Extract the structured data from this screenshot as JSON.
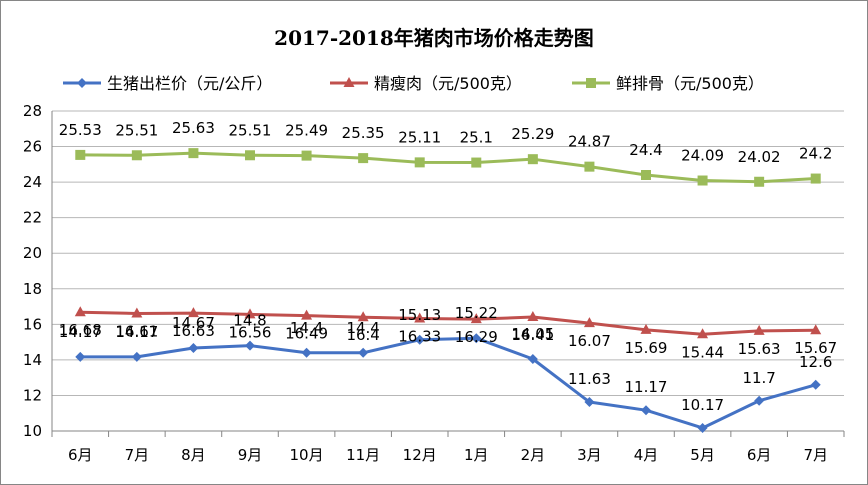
{
  "chart_data": {
    "type": "line",
    "title": "2017-2018年猪肉市场价格走势图",
    "xlabel": "",
    "ylabel": "",
    "categories": [
      "6月",
      "7月",
      "8月",
      "9月",
      "10月",
      "11月",
      "12月",
      "1月",
      "2月",
      "3月",
      "4月",
      "5月",
      "6月",
      "7月"
    ],
    "ylim": [
      10,
      28
    ],
    "yticks": [
      "10",
      "12",
      "14",
      "16",
      "18",
      "20",
      "22",
      "24",
      "26",
      "28"
    ],
    "grid": true,
    "legend_position": "top",
    "series": [
      {
        "name": "生猪出栏价（元/公斤）",
        "color": "#4472C4",
        "marker": "diamond",
        "values": [
          14.17,
          14.17,
          14.67,
          14.8,
          14.4,
          14.4,
          15.13,
          15.22,
          14.05,
          11.63,
          11.17,
          10.17,
          11.7,
          12.6
        ],
        "labels": [
          "14.17",
          "14.17",
          "14.67",
          "14.8",
          "14.4",
          "14.4",
          "15.13",
          "15.22",
          "14.05",
          "11.63",
          "11.17",
          "10.17",
          "11.7",
          "12.6"
        ]
      },
      {
        "name": "精瘦肉（元/500克）",
        "color": "#C0504D",
        "marker": "triangle",
        "values": [
          16.68,
          16.61,
          16.63,
          16.56,
          16.49,
          16.4,
          16.33,
          16.29,
          16.41,
          16.07,
          15.69,
          15.44,
          15.63,
          15.67
        ],
        "labels": [
          "16.68",
          "16.61",
          "16.63",
          "16.56",
          "16.49",
          "16.4",
          "16.33",
          "16.29",
          "16.41",
          "16.07",
          "15.69",
          "15.44",
          "15.63",
          "15.67"
        ]
      },
      {
        "name": "鲜排骨（元/500克）",
        "color": "#9BBB59",
        "marker": "square",
        "values": [
          25.53,
          25.51,
          25.63,
          25.51,
          25.49,
          25.35,
          25.11,
          25.1,
          25.29,
          24.87,
          24.4,
          24.09,
          24.02,
          24.2
        ],
        "labels": [
          "25.53",
          "25.51",
          "25.63",
          "25.51",
          "25.49",
          "25.35",
          "25.11",
          "25.1",
          "25.29",
          "24.87",
          "24.4",
          "24.09",
          "24.02",
          "24.2"
        ]
      }
    ]
  }
}
